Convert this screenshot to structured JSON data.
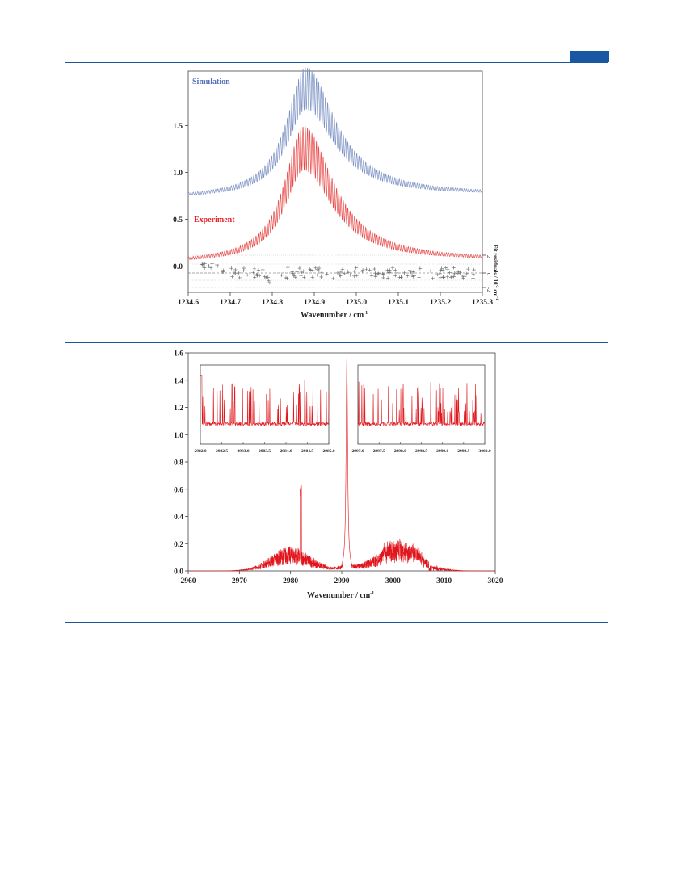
{
  "header": {
    "tab_color": "#1a57a3",
    "rule_color": "#1a57a3"
  },
  "colors": {
    "simulation": "#7d93c4",
    "experiment": "#e84a4a",
    "residuals": "#666666",
    "spectrum2": "#e0161c"
  },
  "chart_data": [
    {
      "type": "line",
      "xlabel": "Wavenumber / cm",
      "xlabel_sup": "-1",
      "right_axis_label": "Fit residuals / 10",
      "right_axis_sup": "-2",
      "right_axis_unit": "cm",
      "xlim": [
        1234.6,
        1235.3
      ],
      "ylim": [
        -0.28,
        2.08
      ],
      "xticks": [
        "1234.6",
        "1234.7",
        "1234.8",
        "1234.9",
        "1235.0",
        "1235.1",
        "1235.2",
        "1235.3"
      ],
      "yticks": [
        "0.0",
        "0.5",
        "1.0",
        "1.5"
      ],
      "right_ticks": [
        "2",
        "0",
        "-2"
      ],
      "series": [
        {
          "name": "Simulation",
          "peak_x": 1234.88,
          "baseline": 0.72,
          "peak": 2.03,
          "end": 0.75
        },
        {
          "name": "Experiment",
          "peak_x": 1234.875,
          "baseline": 0.03,
          "peak": 1.4,
          "end": 0.05
        }
      ],
      "residuals": {
        "type": "scatter",
        "marker": "+",
        "range": [
          -2,
          2
        ]
      }
    },
    {
      "type": "line",
      "xlabel": "Wavenumber / cm",
      "xlabel_sup": "-1",
      "xlim": [
        2960,
        3020
      ],
      "ylim": [
        0.0,
        1.6
      ],
      "xticks": [
        "2960",
        "2970",
        "2980",
        "2990",
        "3000",
        "3010",
        "3020"
      ],
      "yticks": [
        "0.0",
        "0.2",
        "0.4",
        "0.6",
        "0.8",
        "1.0",
        "1.2",
        "1.4",
        "1.6"
      ],
      "features": {
        "q_branch": {
          "x": 2991,
          "y": 1.57
        },
        "p_branch_center": {
          "x": 2980,
          "y": 0.18
        },
        "p_spike": {
          "x": 2982,
          "y": 0.64
        },
        "r_branch_center": {
          "x": 3001,
          "y": 0.2
        },
        "r_max": 0.4
      },
      "insets": [
        {
          "xticks": [
            "2982.0",
            "2982.5",
            "2983.0",
            "2983.5",
            "2984.0",
            "2984.5",
            "2985.0"
          ]
        },
        {
          "xticks": [
            "2997.0",
            "2997.5",
            "2998.0",
            "2998.5",
            "2999.0",
            "2999.5",
            "3000.0"
          ]
        }
      ]
    }
  ]
}
